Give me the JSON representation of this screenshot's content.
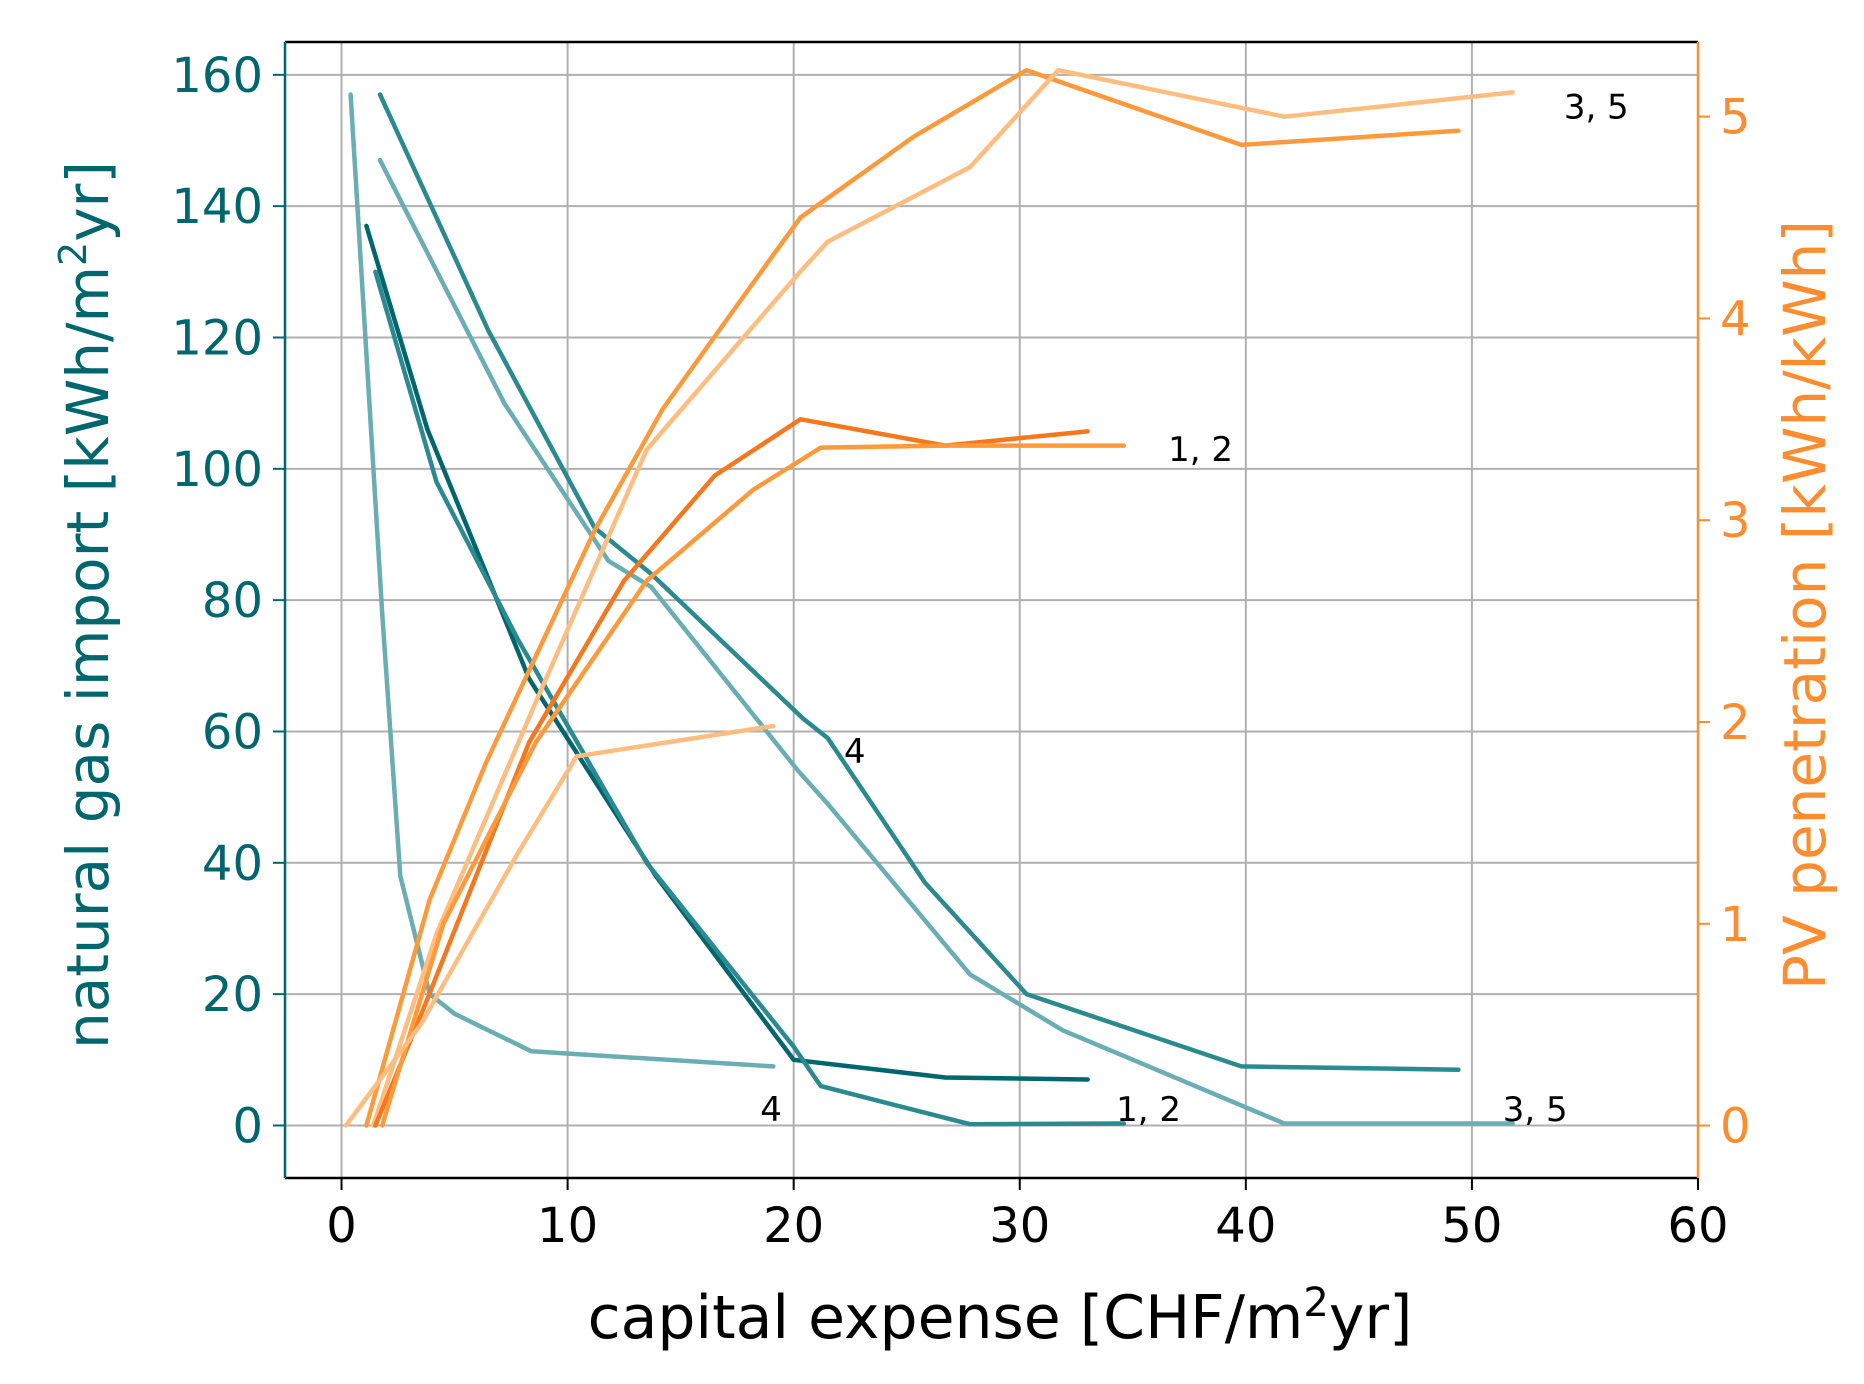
{
  "colors": {
    "teal_dark": "#00666e",
    "teal_mid": "#2a8a90",
    "teal_light": "#6aaeb3",
    "orange_dark": "#f5781e",
    "orange_mid": "#ff9a3c",
    "orange_light": "#ffbe80",
    "grid": "#b0b0b0",
    "text": "#000000"
  },
  "chart_data": {
    "type": "line",
    "xlabel_parts": [
      "capital expense [CHF/m",
      "2",
      "yr]"
    ],
    "ylabel_left_parts": [
      "natural gas import [kWh/m",
      "2",
      "yr]"
    ],
    "ylabel_right": "PV penetration [kWh/kWh]",
    "xlim": [
      -2.5,
      60
    ],
    "ylim_left": [
      -8,
      165
    ],
    "ylim_right": [
      -0.26,
      5.37
    ],
    "xticks": [
      0,
      10,
      20,
      30,
      40,
      50,
      60
    ],
    "yticks_left": [
      0,
      20,
      40,
      60,
      80,
      100,
      120,
      140,
      160
    ],
    "yticks_right": [
      0,
      1,
      2,
      3,
      4,
      5
    ],
    "grid": true,
    "gas_series": [
      {
        "color": "teal_mid",
        "points": [
          [
            1.7,
            157
          ],
          [
            6.5,
            121
          ],
          [
            11.2,
            91
          ],
          [
            13.7,
            84
          ],
          [
            20.4,
            62
          ],
          [
            21.5,
            59
          ],
          [
            25.8,
            37
          ],
          [
            30.3,
            20
          ],
          [
            39.8,
            9
          ],
          [
            49.4,
            8.5
          ]
        ]
      },
      {
        "color": "teal_light",
        "points": [
          [
            1.7,
            147
          ],
          [
            7.2,
            110
          ],
          [
            11.8,
            86
          ],
          [
            13.7,
            82
          ],
          [
            20.2,
            54
          ],
          [
            21.5,
            49
          ],
          [
            27.8,
            23
          ],
          [
            31.9,
            14.5
          ],
          [
            41.7,
            0.3
          ],
          [
            51.8,
            0.3
          ]
        ]
      },
      {
        "color": "teal_dark",
        "points": [
          [
            1.1,
            137
          ],
          [
            3.8,
            106
          ],
          [
            8.3,
            68
          ],
          [
            13.9,
            38
          ],
          [
            20.0,
            10
          ],
          [
            26.7,
            7.3
          ],
          [
            33.0,
            7.0
          ]
        ]
      },
      {
        "color": "teal_mid",
        "points": [
          [
            1.5,
            130
          ],
          [
            4.2,
            98
          ],
          [
            7.8,
            74
          ],
          [
            13.5,
            40
          ],
          [
            20.0,
            12
          ],
          [
            21.2,
            6
          ],
          [
            27.8,
            0.2
          ],
          [
            34.6,
            0.3
          ]
        ]
      },
      {
        "color": "teal_light",
        "points": [
          [
            0.4,
            157
          ],
          [
            1.8,
            78
          ],
          [
            2.6,
            38
          ],
          [
            3.9,
            20
          ],
          [
            5.0,
            17
          ],
          [
            8.4,
            11.3
          ],
          [
            19.1,
            9
          ]
        ]
      }
    ],
    "pv_series": [
      {
        "color": "orange_mid",
        "points": [
          [
            1.1,
            0
          ],
          [
            3.9,
            1.12
          ],
          [
            6.4,
            1.8
          ],
          [
            11.2,
            2.95
          ],
          [
            14.2,
            3.55
          ],
          [
            19.0,
            4.3
          ],
          [
            20.3,
            4.5
          ],
          [
            25.3,
            4.9
          ],
          [
            30.3,
            5.23
          ],
          [
            39.8,
            4.86
          ],
          [
            49.4,
            4.93
          ]
        ]
      },
      {
        "color": "orange_light",
        "points": [
          [
            1.4,
            0
          ],
          [
            4.2,
            0.95
          ],
          [
            8.6,
            2.1
          ],
          [
            13.5,
            3.35
          ],
          [
            20.2,
            4.22
          ],
          [
            21.5,
            4.38
          ],
          [
            27.8,
            4.75
          ],
          [
            31.7,
            5.23
          ],
          [
            41.7,
            5.0
          ],
          [
            51.8,
            5.12
          ]
        ]
      },
      {
        "color": "orange_dark",
        "points": [
          [
            1.5,
            0
          ],
          [
            3.7,
            0.6
          ],
          [
            8.3,
            1.9
          ],
          [
            12.5,
            2.7
          ],
          [
            16.5,
            3.22
          ],
          [
            20.3,
            3.5
          ],
          [
            26.7,
            3.37
          ],
          [
            33.0,
            3.44
          ]
        ]
      },
      {
        "color": "orange_mid",
        "points": [
          [
            1.8,
            0
          ],
          [
            4.5,
            1.0
          ],
          [
            8.6,
            1.9
          ],
          [
            13.5,
            2.7
          ],
          [
            18.2,
            3.15
          ],
          [
            21.2,
            3.36
          ],
          [
            26.7,
            3.37
          ],
          [
            34.6,
            3.37
          ]
        ]
      },
      {
        "color": "orange_light",
        "points": [
          [
            0.2,
            0
          ],
          [
            3.5,
            0.5
          ],
          [
            7.8,
            1.35
          ],
          [
            10.4,
            1.83
          ],
          [
            19.1,
            1.98
          ]
        ]
      }
    ],
    "annotations": [
      {
        "text": "3, 5",
        "x": 55.5,
        "y_right": 5.05
      },
      {
        "text": "1, 2",
        "x": 38.0,
        "y_left": 103
      },
      {
        "text": "4",
        "x": 22.7,
        "y_left": 57
      },
      {
        "text": "4",
        "x": 19.0,
        "y_left": 2.5
      },
      {
        "text": "1, 2",
        "x": 35.7,
        "y_left": 2.5
      },
      {
        "text": "3, 5",
        "x": 52.8,
        "y_left": 2.5
      }
    ]
  }
}
